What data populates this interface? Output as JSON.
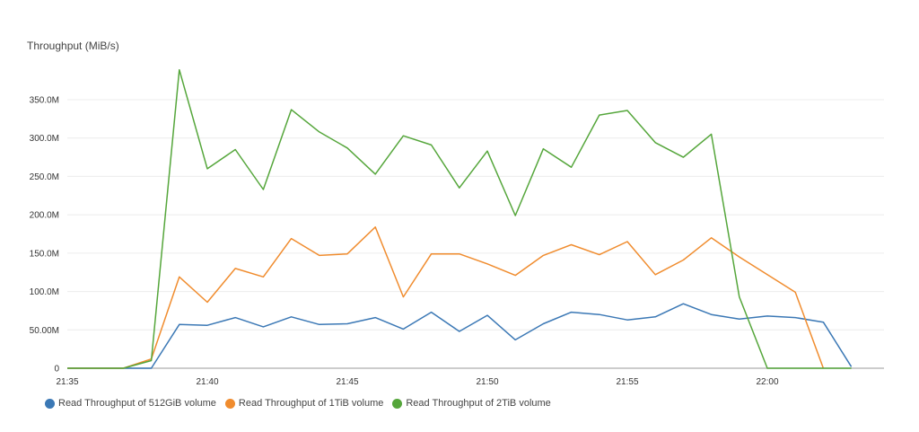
{
  "chart_data": {
    "type": "line",
    "title": "",
    "ylabel": "Throughput (MiB/s)",
    "xlabel": "",
    "ylim": [
      0,
      400
    ],
    "y_ticks": [
      0,
      50,
      100,
      150,
      200,
      250,
      300,
      350
    ],
    "y_tick_labels": [
      "0",
      "50.00M",
      "100.0M",
      "150.0M",
      "200.0M",
      "250.0M",
      "300.0M",
      "350.0M"
    ],
    "grid": "horizontal",
    "legend": "bottom",
    "x": [
      "21:35",
      "21:36",
      "21:37",
      "21:38",
      "21:39",
      "21:40",
      "21:41",
      "21:42",
      "21:43",
      "21:44",
      "21:45",
      "21:46",
      "21:47",
      "21:48",
      "21:49",
      "21:50",
      "21:51",
      "21:52",
      "21:53",
      "21:54",
      "21:55",
      "21:56",
      "21:57",
      "21:58",
      "21:59",
      "22:00",
      "22:01",
      "22:02",
      "22:03"
    ],
    "x_tick_labels": [
      "21:35",
      "21:40",
      "21:45",
      "21:50",
      "21:55",
      "22:00"
    ],
    "series": [
      {
        "name": "Read Throughput of 512GiB volume",
        "color": "#3b78b5",
        "values": [
          0,
          0,
          0,
          0,
          57,
          56,
          66,
          54,
          67,
          57,
          58,
          66,
          51,
          73,
          48,
          69,
          37,
          58,
          73,
          70,
          63,
          67,
          84,
          70,
          64,
          68,
          66,
          60,
          2
        ]
      },
      {
        "name": "Read Throughput of 1TiB volume",
        "color": "#f08c2e",
        "values": [
          0,
          0,
          0,
          12,
          119,
          86,
          130,
          119,
          169,
          147,
          149,
          184,
          93,
          149,
          149,
          136,
          121,
          147,
          161,
          148,
          165,
          122,
          141,
          170,
          145,
          122,
          99,
          0,
          null
        ]
      },
      {
        "name": "Read Throughput of 2TiB volume",
        "color": "#55a63b",
        "values": [
          0,
          0,
          0,
          10,
          389,
          260,
          285,
          233,
          337,
          308,
          287,
          253,
          303,
          291,
          235,
          283,
          199,
          286,
          262,
          330,
          336,
          294,
          275,
          305,
          93,
          0,
          0,
          0,
          0
        ]
      }
    ]
  }
}
